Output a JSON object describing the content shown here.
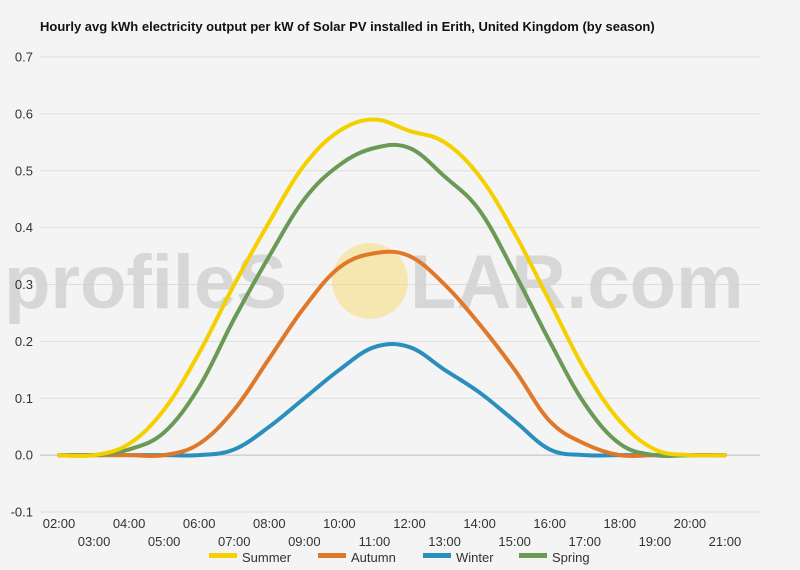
{
  "chart_data": {
    "type": "line",
    "title": "Hourly avg kWh electricity output per kW of Solar PV installed in Erith, United Kingdom (by season)",
    "xlabel": "",
    "ylabel": "",
    "x": [
      "02:00",
      "03:00",
      "04:00",
      "05:00",
      "06:00",
      "07:00",
      "08:00",
      "09:00",
      "10:00",
      "11:00",
      "12:00",
      "13:00",
      "14:00",
      "15:00",
      "16:00",
      "17:00",
      "18:00",
      "19:00",
      "20:00",
      "21:00"
    ],
    "x_ticks_upper": [
      "02:00",
      "04:00",
      "06:00",
      "08:00",
      "10:00",
      "12:00",
      "14:00",
      "16:00",
      "18:00",
      "20:00"
    ],
    "x_ticks_lower": [
      "03:00",
      "05:00",
      "07:00",
      "09:00",
      "11:00",
      "13:00",
      "15:00",
      "17:00",
      "19:00",
      "21:00"
    ],
    "y_ticks": [
      "0.7",
      "0.6",
      "0.5",
      "0.4",
      "0.3",
      "0.2",
      "0.1",
      "0.0",
      "-0.1"
    ],
    "ylim": [
      -0.1,
      0.7
    ],
    "grid": true,
    "legend_position": "bottom",
    "series": [
      {
        "name": "Summer",
        "color": "#f5d000",
        "values": [
          0,
          0,
          0.02,
          0.08,
          0.18,
          0.3,
          0.41,
          0.51,
          0.57,
          0.59,
          0.57,
          0.55,
          0.49,
          0.39,
          0.27,
          0.15,
          0.06,
          0.01,
          0,
          0
        ]
      },
      {
        "name": "Autumn",
        "color": "#e0782a",
        "values": [
          0,
          0,
          0,
          0,
          0.02,
          0.08,
          0.17,
          0.26,
          0.33,
          0.355,
          0.35,
          0.3,
          0.23,
          0.15,
          0.06,
          0.02,
          0,
          0,
          0,
          0
        ]
      },
      {
        "name": "Winter",
        "color": "#2a8fbd",
        "values": [
          0,
          0,
          0,
          0,
          0,
          0.01,
          0.05,
          0.1,
          0.15,
          0.19,
          0.19,
          0.15,
          0.11,
          0.06,
          0.01,
          0,
          0,
          0,
          0,
          0
        ]
      },
      {
        "name": "Spring",
        "color": "#6a9a55",
        "values": [
          0,
          0,
          0.01,
          0.04,
          0.12,
          0.24,
          0.35,
          0.45,
          0.51,
          0.54,
          0.54,
          0.49,
          0.43,
          0.32,
          0.2,
          0.09,
          0.02,
          0,
          0,
          0
        ]
      }
    ]
  },
  "watermark": {
    "text_left": "profileS",
    "text_right": "LAR.com",
    "sun_color": "#f7dc7a"
  }
}
